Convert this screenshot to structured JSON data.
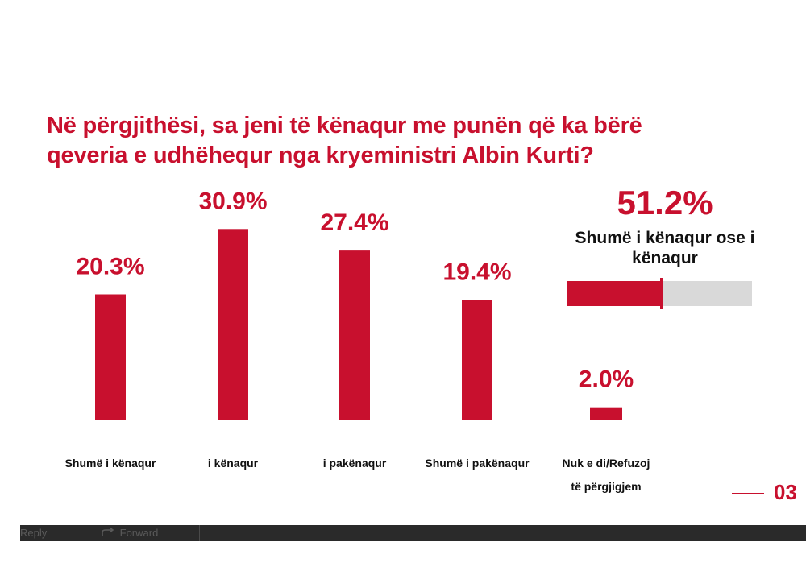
{
  "chart_data": {
    "type": "bar",
    "title": "Në përgjithësi, sa jeni të kënaqur me punën që ka bërë qeveria e udhëhequr nga kryeministri Albin Kurti?",
    "categories": [
      "Shumë i kënaqur",
      "i kënaqur",
      "i pakënaqur",
      "Shumë i pakënaqur",
      "Nuk e di/Refuzoj të përgjigjem"
    ],
    "values": [
      20.3,
      30.9,
      27.4,
      19.4,
      2.0
    ],
    "value_labels": [
      "20.3%",
      "30.9%",
      "27.4%",
      "19.4%",
      "2.0%"
    ],
    "unit": "%",
    "bar_color": "#c8102e",
    "grid": false
  },
  "summary": {
    "value": 51.2,
    "value_label": "51.2%",
    "label": "Shumë i kënaqur ose i kënaqur",
    "fill_color": "#c8102e",
    "track_color": "#d9d9d9"
  },
  "page_number": "03",
  "bottom_bar": {
    "reply_label": "Reply",
    "forward_label": "Forward",
    "forward_icon": "forward-arrow-icon"
  }
}
